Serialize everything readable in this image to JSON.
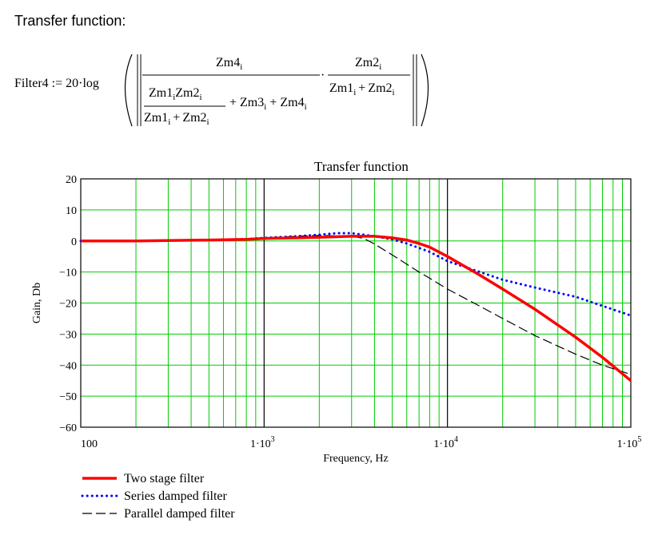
{
  "heading": "Transfer function:",
  "formula": {
    "lhs": "Filter4 := 20·log",
    "zm1": "Zm1",
    "zm2": "Zm2",
    "zm3": "Zm3",
    "zm4": "Zm4",
    "index": "i",
    "plus": "+",
    "dot": "·"
  },
  "chart_data": {
    "type": "line",
    "title": "Transfer function",
    "xlabel": "Frequency, Hz",
    "ylabel": "Gain, Db",
    "xscale": "log",
    "xlim": [
      100,
      100000
    ],
    "ylim": [
      -60,
      20
    ],
    "x_tick_labels": [
      "100",
      "1·10",
      "1·10",
      "1·10"
    ],
    "x_tick_exponents": [
      "",
      "3",
      "4",
      "5"
    ],
    "y_ticks": [
      20,
      10,
      0,
      -10,
      -20,
      -30,
      -40,
      -50,
      -60
    ],
    "y_tick_labels": [
      "20",
      "10",
      "0",
      "−10",
      "−20",
      "−30",
      "−40",
      "−50",
      "−60"
    ],
    "grid": true,
    "grid_color": "#00cc00",
    "decade_line_color": "#000000",
    "legend_position": "bottom-left",
    "series": [
      {
        "name": "Two stage filter",
        "color": "#ff0000",
        "style": "solid",
        "x": [
          100,
          200,
          500,
          800,
          1000,
          1500,
          2000,
          3000,
          4000,
          5000,
          6000,
          7000,
          8000,
          10000,
          15000,
          20000,
          30000,
          50000,
          70000,
          100000
        ],
        "y": [
          0,
          0,
          0.3,
          0.5,
          0.8,
          1.0,
          1.2,
          1.5,
          1.5,
          1.0,
          0.3,
          -0.8,
          -2.0,
          -5.0,
          -11.0,
          -15.5,
          -22.0,
          -31.0,
          -37.5,
          -45.0
        ]
      },
      {
        "name": "Series damped filter",
        "color": "#0000ff",
        "style": "dotted",
        "x": [
          100,
          200,
          500,
          800,
          1000,
          1500,
          2000,
          2500,
          3000,
          3500,
          4000,
          5000,
          6000,
          8000,
          10000,
          15000,
          20000,
          30000,
          50000,
          100000
        ],
        "y": [
          0,
          0,
          0.3,
          0.6,
          1.0,
          1.5,
          2.0,
          2.5,
          2.5,
          2.0,
          1.5,
          0.5,
          -0.8,
          -3.5,
          -6.5,
          -10.0,
          -12.5,
          -15.0,
          -18.0,
          -24.0
        ]
      },
      {
        "name": "Parallel damped filter",
        "color": "#000000",
        "style": "dashed",
        "x": [
          100,
          200,
          500,
          800,
          1000,
          1500,
          2000,
          3000,
          3500,
          4000,
          5000,
          6000,
          7000,
          8000,
          10000,
          15000,
          20000,
          30000,
          50000,
          70000,
          100000
        ],
        "y": [
          0,
          0,
          0.3,
          0.6,
          1.0,
          1.5,
          1.8,
          1.5,
          0.8,
          -1.0,
          -4.5,
          -7.5,
          -10.0,
          -12.0,
          -15.5,
          -21.0,
          -25.0,
          -30.5,
          -36.5,
          -40.0,
          -43.0
        ]
      }
    ]
  }
}
